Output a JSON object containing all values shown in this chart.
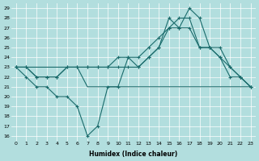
{
  "xlabel": "Humidex (Indice chaleur)",
  "background_color": "#b2dede",
  "grid_color": "#ffffff",
  "line_color": "#1a6b6b",
  "xlim": [
    -0.5,
    23.5
  ],
  "ylim": [
    15.5,
    29.5
  ],
  "xticks": [
    0,
    1,
    2,
    3,
    4,
    5,
    6,
    7,
    8,
    9,
    10,
    11,
    12,
    13,
    14,
    15,
    16,
    17,
    18,
    19,
    20,
    21,
    22,
    23
  ],
  "yticks": [
    16,
    17,
    18,
    19,
    20,
    21,
    22,
    23,
    24,
    25,
    26,
    27,
    28,
    29
  ],
  "line_max": [
    23,
    23,
    22,
    22,
    22,
    23,
    23,
    23,
    23,
    23,
    23,
    23,
    23,
    24,
    25,
    28,
    27,
    29,
    28,
    25,
    24,
    23,
    22,
    21
  ],
  "line_mid1": [
    23,
    23,
    22,
    22,
    22,
    23,
    23,
    23,
    23,
    23,
    24,
    24,
    24,
    25,
    26,
    27,
    27,
    27,
    25,
    25,
    25,
    23,
    22,
    21
  ],
  "line_dip": [
    23,
    22,
    21,
    21,
    20,
    20,
    19,
    16,
    17,
    21,
    21,
    24,
    23,
    24,
    25,
    27,
    28,
    28,
    25,
    25,
    24,
    22,
    22,
    21
  ],
  "line_flat": [
    23,
    23,
    23,
    23,
    23,
    23,
    23,
    21,
    21,
    21,
    21,
    21,
    21,
    21,
    21,
    21,
    21,
    21,
    21,
    21,
    21,
    21,
    21,
    21
  ]
}
